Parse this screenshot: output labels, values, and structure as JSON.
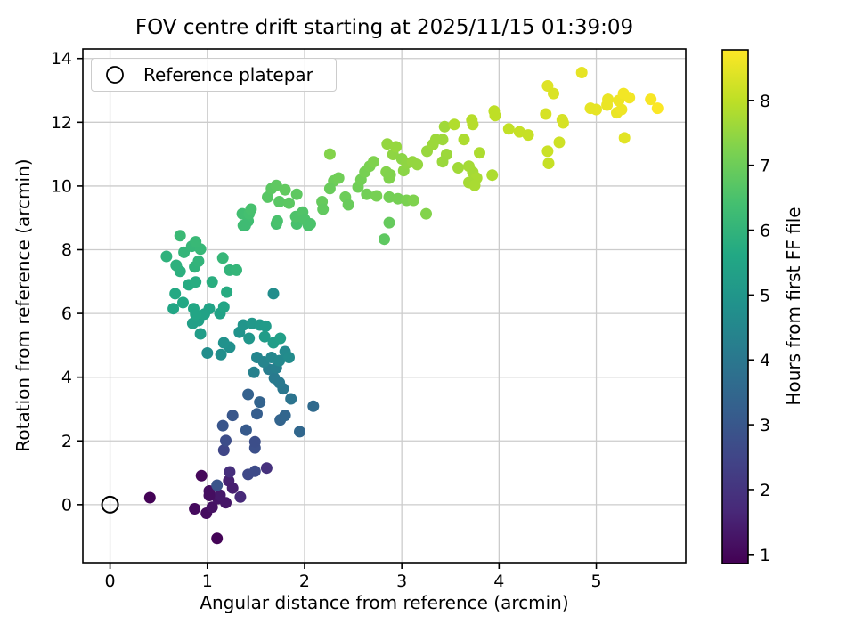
{
  "chart_data": {
    "type": "scatter",
    "title": "FOV centre drift starting at 2025/11/15 01:39:09",
    "xlabel": "Angular distance from reference (arcmin)",
    "ylabel": "Rotation from reference (arcmin)",
    "xlim": [
      -0.28,
      5.92
    ],
    "ylim": [
      -1.82,
      14.3
    ],
    "xticks": [
      0,
      1,
      2,
      3,
      4,
      5
    ],
    "yticks": [
      0,
      2,
      4,
      6,
      8,
      10,
      12,
      14
    ],
    "grid": true,
    "legend": {
      "label": "Reference platepar",
      "marker": "open-circle",
      "position": "upper-left"
    },
    "reference_point": {
      "x": 0,
      "y": 0
    },
    "colorbar": {
      "label": "Hours from first FF file",
      "ticks": [
        1,
        2,
        3,
        4,
        5,
        6,
        7,
        8
      ],
      "vmin": 0.86,
      "vmax": 8.78,
      "colormap": "viridis"
    },
    "colormap_stops": [
      "#440154",
      "#482878",
      "#414487",
      "#355f8d",
      "#2a788e",
      "#21918c",
      "#22a884",
      "#44bf70",
      "#7ad151",
      "#bddf26",
      "#fde725"
    ],
    "colors": {
      "grid": "#cccccc",
      "spine": "#000000",
      "background": "#ffffff",
      "marker_edge": "#000000"
    },
    "points_format": [
      "angular_distance_arcmin",
      "rotation_arcmin",
      "hours_from_first_ff"
    ],
    "points": [
      [
        0.41,
        0.22,
        0.9
      ],
      [
        1.1,
        -1.06,
        0.92
      ],
      [
        0.94,
        0.91,
        1.0
      ],
      [
        0.87,
        -0.13,
        1.05
      ],
      [
        0.99,
        -0.27,
        1.1
      ],
      [
        1.02,
        0.43,
        1.15
      ],
      [
        1.05,
        -0.08,
        1.2
      ],
      [
        1.11,
        0.19,
        1.25
      ],
      [
        1.19,
        0.06,
        1.3
      ],
      [
        1.13,
        0.3,
        1.35
      ],
      [
        1.22,
        0.75,
        1.5
      ],
      [
        1.26,
        0.52,
        1.45
      ],
      [
        1.23,
        1.03,
        1.85
      ],
      [
        1.34,
        0.24,
        1.7
      ],
      [
        1.61,
        1.15,
        1.9
      ],
      [
        1.02,
        0.29,
        1.12
      ],
      [
        1.1,
        0.61,
        2.9
      ],
      [
        1.42,
        0.95,
        2.6
      ],
      [
        1.49,
        1.05,
        2.65
      ],
      [
        1.17,
        1.71,
        2.5
      ],
      [
        1.49,
        1.78,
        2.8
      ],
      [
        1.19,
        2.01,
        2.7
      ],
      [
        1.49,
        1.97,
        2.75
      ],
      [
        1.16,
        2.48,
        2.95
      ],
      [
        1.26,
        2.8,
        3.0
      ],
      [
        1.4,
        2.34,
        3.1
      ],
      [
        1.42,
        3.46,
        3.3
      ],
      [
        1.51,
        2.85,
        3.2
      ],
      [
        1.54,
        3.22,
        3.35
      ],
      [
        1.75,
        2.66,
        3.4
      ],
      [
        1.8,
        2.8,
        3.45
      ],
      [
        1.95,
        2.29,
        3.5
      ],
      [
        2.09,
        3.09,
        3.6
      ],
      [
        1.86,
        3.32,
        3.9
      ],
      [
        1.78,
        3.64,
        4.0
      ],
      [
        1.74,
        3.83,
        4.05
      ],
      [
        1.69,
        3.97,
        4.1
      ],
      [
        1.63,
        4.25,
        4.2
      ],
      [
        1.71,
        4.29,
        4.25
      ],
      [
        1.48,
        4.15,
        4.3
      ],
      [
        1.51,
        4.62,
        4.45
      ],
      [
        1.58,
        4.48,
        4.4
      ],
      [
        1.66,
        4.62,
        4.5
      ],
      [
        1.74,
        4.52,
        4.55
      ],
      [
        1.8,
        4.8,
        4.6
      ],
      [
        1.84,
        4.62,
        4.65
      ],
      [
        1.0,
        4.76,
        4.7
      ],
      [
        1.14,
        4.71,
        4.75
      ],
      [
        1.23,
        4.94,
        4.8
      ],
      [
        1.17,
        5.08,
        4.85
      ],
      [
        1.33,
        5.41,
        4.9
      ],
      [
        1.37,
        5.64,
        4.95
      ],
      [
        1.43,
        5.22,
        5.0
      ],
      [
        1.46,
        5.69,
        5.05
      ],
      [
        1.54,
        5.64,
        5.1
      ],
      [
        1.6,
        5.6,
        5.15
      ],
      [
        1.59,
        5.27,
        5.2
      ],
      [
        1.68,
        5.08,
        5.25
      ],
      [
        1.75,
        5.22,
        5.3
      ],
      [
        0.91,
        5.78,
        5.35
      ],
      [
        0.85,
        5.69,
        5.3
      ],
      [
        0.93,
        5.36,
        5.25
      ],
      [
        1.02,
        6.15,
        5.45
      ],
      [
        1.13,
        6.0,
        5.4
      ],
      [
        1.17,
        6.2,
        5.5
      ],
      [
        0.97,
        5.98,
        5.42
      ],
      [
        1.68,
        6.62,
        4.7
      ],
      [
        0.65,
        6.15,
        5.55
      ],
      [
        0.75,
        6.34,
        5.6
      ],
      [
        0.86,
        6.15,
        5.58
      ],
      [
        0.88,
        5.97,
        5.5
      ],
      [
        0.67,
        6.62,
        5.65
      ],
      [
        0.81,
        6.9,
        5.7
      ],
      [
        0.88,
        6.99,
        5.75
      ],
      [
        1.05,
        6.99,
        5.8
      ],
      [
        1.2,
        6.67,
        5.72
      ],
      [
        0.72,
        7.32,
        5.85
      ],
      [
        0.68,
        7.51,
        5.9
      ],
      [
        0.87,
        7.46,
        5.95
      ],
      [
        0.91,
        7.64,
        6.0
      ],
      [
        0.58,
        7.79,
        5.92
      ],
      [
        0.76,
        7.92,
        6.05
      ],
      [
        0.84,
        8.11,
        6.1
      ],
      [
        0.93,
        8.02,
        6.12
      ],
      [
        0.88,
        8.25,
        6.15
      ],
      [
        0.72,
        8.44,
        6.2
      ],
      [
        1.16,
        7.74,
        6.1
      ],
      [
        1.23,
        7.36,
        6.0
      ],
      [
        1.3,
        7.36,
        6.05
      ],
      [
        1.37,
        8.76,
        6.3
      ],
      [
        1.42,
        8.9,
        6.32
      ],
      [
        1.39,
        8.76,
        6.28
      ],
      [
        1.36,
        9.13,
        6.35
      ],
      [
        1.43,
        9.13,
        6.4
      ],
      [
        1.45,
        9.27,
        6.45
      ],
      [
        1.71,
        8.81,
        6.42
      ],
      [
        1.92,
        8.81,
        6.45
      ],
      [
        2.04,
        8.76,
        6.5
      ],
      [
        1.72,
        8.9,
        6.48
      ],
      [
        1.91,
        9.04,
        6.55
      ],
      [
        1.98,
        9.18,
        6.6
      ],
      [
        2.0,
        8.95,
        6.55
      ],
      [
        2.06,
        8.81,
        6.52
      ],
      [
        1.62,
        9.65,
        6.7
      ],
      [
        1.66,
        9.92,
        6.75
      ],
      [
        1.71,
        10.02,
        6.8
      ],
      [
        1.8,
        9.88,
        6.85
      ],
      [
        1.74,
        9.51,
        6.72
      ],
      [
        1.84,
        9.46,
        6.75
      ],
      [
        1.92,
        9.74,
        6.8
      ],
      [
        2.18,
        9.51,
        6.9
      ],
      [
        2.19,
        9.27,
        6.85
      ],
      [
        2.3,
        10.16,
        7.0
      ],
      [
        2.35,
        10.25,
        7.05
      ],
      [
        2.26,
        9.92,
        6.95
      ],
      [
        2.42,
        9.65,
        7.0
      ],
      [
        2.45,
        9.41,
        6.95
      ],
      [
        2.26,
        11.0,
        7.3
      ],
      [
        2.82,
        8.33,
        6.8
      ],
      [
        2.87,
        8.85,
        6.9
      ],
      [
        2.55,
        9.97,
        7.05
      ],
      [
        2.58,
        10.2,
        7.1
      ],
      [
        2.62,
        10.44,
        7.15
      ],
      [
        2.67,
        10.62,
        7.2
      ],
      [
        2.71,
        10.76,
        7.25
      ],
      [
        2.64,
        9.74,
        7.1
      ],
      [
        2.74,
        9.69,
        7.15
      ],
      [
        2.84,
        10.44,
        7.3
      ],
      [
        2.87,
        10.25,
        7.25
      ],
      [
        2.88,
        10.35,
        7.28
      ],
      [
        3.02,
        10.48,
        7.4
      ],
      [
        2.91,
        10.99,
        7.45
      ],
      [
        3.0,
        10.85,
        7.4
      ],
      [
        3.05,
        10.71,
        7.45
      ],
      [
        3.11,
        10.76,
        7.5
      ],
      [
        3.16,
        10.67,
        7.5
      ],
      [
        2.87,
        9.65,
        7.1
      ],
      [
        2.96,
        9.6,
        7.12
      ],
      [
        3.05,
        9.55,
        7.2
      ],
      [
        3.12,
        9.55,
        7.25
      ],
      [
        3.25,
        9.13,
        7.3
      ],
      [
        2.85,
        11.32,
        7.5
      ],
      [
        2.94,
        11.23,
        7.52
      ],
      [
        3.26,
        11.09,
        7.55
      ],
      [
        3.32,
        11.3,
        7.6
      ],
      [
        3.42,
        11.46,
        7.62
      ],
      [
        3.44,
        11.86,
        7.65
      ],
      [
        3.35,
        11.46,
        7.6
      ],
      [
        3.46,
        10.99,
        7.6
      ],
      [
        3.42,
        10.76,
        7.58
      ],
      [
        3.58,
        10.57,
        7.65
      ],
      [
        3.69,
        10.62,
        7.7
      ],
      [
        3.73,
        10.43,
        7.7
      ],
      [
        3.77,
        10.25,
        7.75
      ],
      [
        3.93,
        10.34,
        7.8
      ],
      [
        3.69,
        10.11,
        7.72
      ],
      [
        3.75,
        10.02,
        7.75
      ],
      [
        3.8,
        11.04,
        7.8
      ],
      [
        3.54,
        11.93,
        7.85
      ],
      [
        3.64,
        11.46,
        7.8
      ],
      [
        3.72,
        12.07,
        7.9
      ],
      [
        3.73,
        11.93,
        7.9
      ],
      [
        3.95,
        12.35,
        8.0
      ],
      [
        3.96,
        12.21,
        8.0
      ],
      [
        4.1,
        11.79,
        8.05
      ],
      [
        4.21,
        11.7,
        8.1
      ],
      [
        4.3,
        11.6,
        8.1
      ],
      [
        4.48,
        12.26,
        8.3
      ],
      [
        4.65,
        12.08,
        8.3
      ],
      [
        4.66,
        11.98,
        8.3
      ],
      [
        4.62,
        11.37,
        8.2
      ],
      [
        4.5,
        11.09,
        8.15
      ],
      [
        4.51,
        10.71,
        8.1
      ],
      [
        4.5,
        13.14,
        8.4
      ],
      [
        4.56,
        12.9,
        8.35
      ],
      [
        4.85,
        13.56,
        8.5
      ],
      [
        4.94,
        12.44,
        8.5
      ],
      [
        5.0,
        12.4,
        8.5
      ],
      [
        5.11,
        12.54,
        8.55
      ],
      [
        5.12,
        12.72,
        8.55
      ],
      [
        5.23,
        12.68,
        8.6
      ],
      [
        5.21,
        12.3,
        8.55
      ],
      [
        5.26,
        12.4,
        8.6
      ],
      [
        5.28,
        12.9,
        8.65
      ],
      [
        5.34,
        12.77,
        8.65
      ],
      [
        5.56,
        12.72,
        8.7
      ],
      [
        5.63,
        12.44,
        8.75
      ],
      [
        5.29,
        11.51,
        8.45
      ]
    ]
  }
}
